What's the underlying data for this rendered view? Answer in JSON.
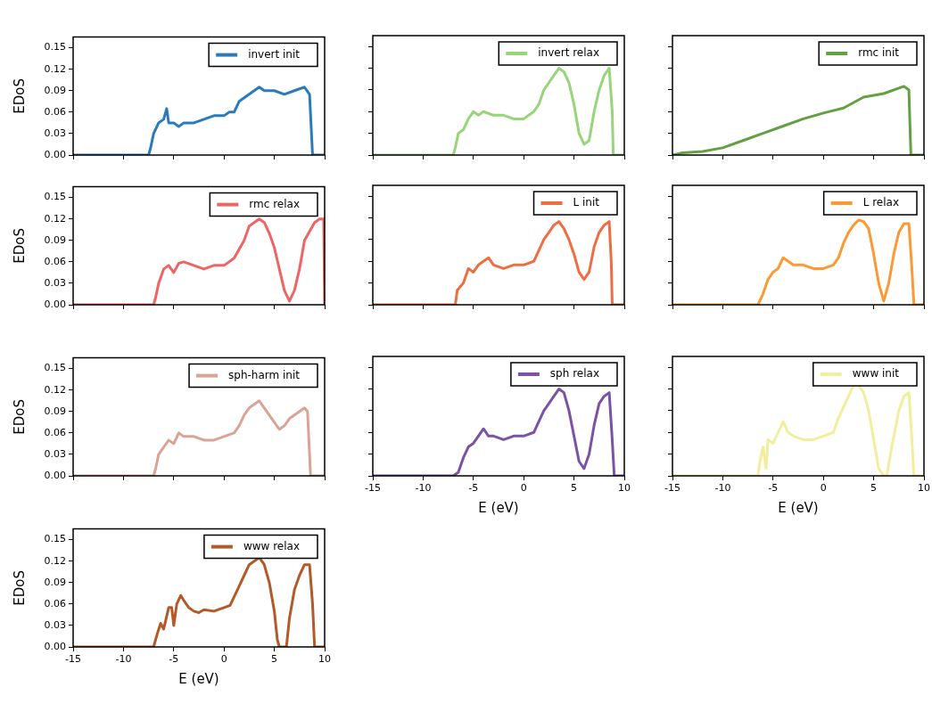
{
  "chart_data": [
    {
      "type": "line",
      "ylabel": "EDoS",
      "legend": "top right",
      "tick_labels": "y",
      "xlim": [
        -15,
        10
      ],
      "xticks": [
        {
          "value": -15,
          "label": null
        },
        {
          "value": -10,
          "label": null
        },
        {
          "value": -5,
          "label": null
        },
        {
          "value": 0,
          "label": null
        },
        {
          "value": 5,
          "label": null
        },
        {
          "value": 10,
          "label": null
        }
      ],
      "ylim": [
        0,
        0.165
      ],
      "yticks": [
        {
          "value": 0,
          "label": "0.00"
        },
        {
          "value": 0.03,
          "label": "0.03"
        },
        {
          "value": 0.06,
          "label": "0.06"
        },
        {
          "value": 0.09,
          "label": "0.09"
        },
        {
          "value": 0.12,
          "label": "0.12"
        },
        {
          "value": 0.15,
          "label": "0.15"
        }
      ],
      "x": [
        -15,
        -7.5,
        -7.3,
        -7,
        -6.5,
        -6,
        -5.7,
        -5.5,
        -5,
        -4.5,
        -4,
        -3,
        -2,
        -1,
        0,
        0.5,
        1,
        1.5,
        2,
        3,
        3.5,
        4,
        5,
        6,
        7,
        8,
        8.5,
        8.8,
        10
      ],
      "series": [
        {
          "name": "invert init",
          "color": "#2b7bba",
          "values": [
            0,
            0,
            0.01,
            0.03,
            0.045,
            0.05,
            0.065,
            0.045,
            0.045,
            0.04,
            0.045,
            0.045,
            0.05,
            0.055,
            0.055,
            0.06,
            0.06,
            0.075,
            0.08,
            0.09,
            0.095,
            0.09,
            0.09,
            0.085,
            0.09,
            0.095,
            0.085,
            0,
            0
          ]
        }
      ]
    },
    {
      "type": "line",
      "legend": "top right",
      "tick_labels": false,
      "xlim": [
        -15,
        10
      ],
      "xticks": [
        {
          "value": -15,
          "label": null
        },
        {
          "value": -10,
          "label": null
        },
        {
          "value": -5,
          "label": null
        },
        {
          "value": 0,
          "label": null
        },
        {
          "value": 5,
          "label": null
        },
        {
          "value": 10,
          "label": null
        }
      ],
      "ylim": [
        0,
        0.165
      ],
      "yticks": [
        {
          "value": 0,
          "label": null
        },
        {
          "value": 0.03,
          "label": null
        },
        {
          "value": 0.06,
          "label": null
        },
        {
          "value": 0.09,
          "label": null
        },
        {
          "value": 0.12,
          "label": null
        },
        {
          "value": 0.15,
          "label": null
        }
      ],
      "x": [
        -15,
        -7,
        -6.8,
        -6.5,
        -6,
        -5.5,
        -5,
        -4.5,
        -4,
        -3,
        -2,
        -1,
        0,
        0.5,
        1,
        1.5,
        2,
        2.5,
        3,
        3.5,
        4,
        4.5,
        5,
        5.5,
        6,
        6.5,
        7,
        7.5,
        8,
        8.5,
        8.8,
        8.9,
        10
      ],
      "series": [
        {
          "name": "invert relax",
          "color": "#98d479",
          "values": [
            0,
            0,
            0.01,
            0.03,
            0.035,
            0.05,
            0.06,
            0.055,
            0.06,
            0.055,
            0.055,
            0.05,
            0.05,
            0.055,
            0.06,
            0.07,
            0.09,
            0.1,
            0.11,
            0.12,
            0.115,
            0.1,
            0.07,
            0.03,
            0.015,
            0.02,
            0.06,
            0.09,
            0.11,
            0.12,
            0.06,
            0,
            0
          ]
        }
      ]
    },
    {
      "type": "line",
      "legend": "top right",
      "tick_labels": false,
      "xlim": [
        -15,
        10
      ],
      "xticks": [
        {
          "value": -15,
          "label": null
        },
        {
          "value": -10,
          "label": null
        },
        {
          "value": -5,
          "label": null
        },
        {
          "value": 0,
          "label": null
        },
        {
          "value": 5,
          "label": null
        },
        {
          "value": 10,
          "label": null
        }
      ],
      "ylim": [
        0,
        0.165
      ],
      "yticks": [
        {
          "value": 0,
          "label": null
        },
        {
          "value": 0.03,
          "label": null
        },
        {
          "value": 0.06,
          "label": null
        },
        {
          "value": 0.09,
          "label": null
        },
        {
          "value": 0.12,
          "label": null
        },
        {
          "value": 0.15,
          "label": null
        }
      ],
      "x": [
        -15,
        -14,
        -12,
        -10,
        -8,
        -6,
        -4,
        -2,
        0,
        2,
        4,
        6,
        8,
        8.5,
        8.7,
        10
      ],
      "series": [
        {
          "name": "rmc init",
          "color": "#62a043",
          "values": [
            0,
            0.003,
            0.005,
            0.01,
            0.02,
            0.03,
            0.04,
            0.05,
            0.058,
            0.065,
            0.08,
            0.085,
            0.095,
            0.09,
            0,
            0
          ]
        }
      ]
    },
    {
      "type": "line",
      "ylabel": "EDoS",
      "legend": "top right",
      "tick_labels": "y",
      "xlim": [
        -15,
        10
      ],
      "xticks": [
        {
          "value": -15,
          "label": null
        },
        {
          "value": -10,
          "label": null
        },
        {
          "value": -5,
          "label": null
        },
        {
          "value": 0,
          "label": null
        },
        {
          "value": 5,
          "label": null
        },
        {
          "value": 10,
          "label": null
        }
      ],
      "ylim": [
        0,
        0.165
      ],
      "yticks": [
        {
          "value": 0,
          "label": "0.00"
        },
        {
          "value": 0.03,
          "label": "0.03"
        },
        {
          "value": 0.06,
          "label": "0.06"
        },
        {
          "value": 0.09,
          "label": "0.09"
        },
        {
          "value": 0.12,
          "label": "0.12"
        },
        {
          "value": 0.15,
          "label": "0.15"
        }
      ],
      "x": [
        -15,
        -7,
        -6.8,
        -6.5,
        -6,
        -5.5,
        -5,
        -4.5,
        -4,
        -3,
        -2,
        -1,
        0,
        0.5,
        1,
        2,
        2.5,
        3.5,
        4,
        4.5,
        5,
        5.5,
        6,
        6.5,
        7,
        7.5,
        8,
        9,
        9.5,
        9.9,
        10
      ],
      "series": [
        {
          "name": "rmc relax",
          "color": "#ee6565",
          "values": [
            0,
            0,
            0.01,
            0.03,
            0.05,
            0.055,
            0.045,
            0.058,
            0.06,
            0.055,
            0.05,
            0.055,
            0.055,
            0.06,
            0.065,
            0.09,
            0.11,
            0.12,
            0.115,
            0.1,
            0.08,
            0.05,
            0.02,
            0.005,
            0.02,
            0.05,
            0.09,
            0.115,
            0.12,
            0.12,
            0
          ]
        }
      ]
    },
    {
      "type": "line",
      "legend": "top right",
      "tick_labels": false,
      "xlim": [
        -15,
        10
      ],
      "xticks": [
        {
          "value": -15,
          "label": null
        },
        {
          "value": -10,
          "label": null
        },
        {
          "value": -5,
          "label": null
        },
        {
          "value": 0,
          "label": null
        },
        {
          "value": 5,
          "label": null
        },
        {
          "value": 10,
          "label": null
        }
      ],
      "ylim": [
        0,
        0.165
      ],
      "yticks": [
        {
          "value": 0,
          "label": null
        },
        {
          "value": 0.03,
          "label": null
        },
        {
          "value": 0.06,
          "label": null
        },
        {
          "value": 0.09,
          "label": null
        },
        {
          "value": 0.12,
          "label": null
        },
        {
          "value": 0.15,
          "label": null
        }
      ],
      "x": [
        -15,
        -6.8,
        -6.6,
        -6,
        -5.5,
        -5,
        -4.5,
        -4,
        -3.5,
        -3,
        -2,
        -1,
        0,
        1,
        1.5,
        2,
        2.5,
        3,
        3.5,
        4,
        4.5,
        5,
        5.5,
        6,
        6.5,
        7,
        7.5,
        8,
        8.5,
        8.7,
        8.8,
        10
      ],
      "series": [
        {
          "name": "L init",
          "color": "#ee6e44",
          "values": [
            0,
            0,
            0.02,
            0.03,
            0.05,
            0.045,
            0.055,
            0.06,
            0.065,
            0.055,
            0.05,
            0.055,
            0.055,
            0.06,
            0.075,
            0.09,
            0.1,
            0.11,
            0.115,
            0.105,
            0.09,
            0.07,
            0.045,
            0.035,
            0.045,
            0.08,
            0.1,
            0.11,
            0.115,
            0.06,
            0,
            0
          ]
        }
      ]
    },
    {
      "type": "line",
      "legend": "top right",
      "tick_labels": false,
      "xlim": [
        -15,
        10
      ],
      "xticks": [
        {
          "value": -15,
          "label": null
        },
        {
          "value": -10,
          "label": null
        },
        {
          "value": -5,
          "label": null
        },
        {
          "value": 0,
          "label": null
        },
        {
          "value": 5,
          "label": null
        },
        {
          "value": 10,
          "label": null
        }
      ],
      "ylim": [
        0,
        0.165
      ],
      "yticks": [
        {
          "value": 0,
          "label": null
        },
        {
          "value": 0.03,
          "label": null
        },
        {
          "value": 0.06,
          "label": null
        },
        {
          "value": 0.09,
          "label": null
        },
        {
          "value": 0.12,
          "label": null
        },
        {
          "value": 0.15,
          "label": null
        }
      ],
      "x": [
        -15,
        -6.5,
        -6,
        -5.5,
        -5,
        -4.5,
        -4,
        -3.5,
        -3,
        -2,
        -1,
        0,
        1,
        1.5,
        2,
        2.5,
        3,
        3.5,
        4,
        4.5,
        5,
        5.5,
        6,
        6.5,
        7,
        7.5,
        8,
        8.5,
        8.8,
        9,
        10
      ],
      "series": [
        {
          "name": "L relax",
          "color": "#fb9a34",
          "values": [
            0,
            0,
            0.015,
            0.035,
            0.045,
            0.05,
            0.065,
            0.06,
            0.055,
            0.055,
            0.05,
            0.05,
            0.055,
            0.065,
            0.085,
            0.1,
            0.11,
            0.117,
            0.115,
            0.105,
            0.07,
            0.03,
            0.005,
            0.03,
            0.07,
            0.1,
            0.112,
            0.112,
            0.05,
            0,
            0
          ]
        }
      ]
    },
    {
      "type": "line",
      "ylabel": "EDoS",
      "legend": "top right",
      "tick_labels": "y",
      "xlim": [
        -15,
        10
      ],
      "xticks": [
        {
          "value": -15,
          "label": null
        },
        {
          "value": -10,
          "label": null
        },
        {
          "value": -5,
          "label": null
        },
        {
          "value": 0,
          "label": null
        },
        {
          "value": 5,
          "label": null
        },
        {
          "value": 10,
          "label": null
        }
      ],
      "ylim": [
        0,
        0.165
      ],
      "yticks": [
        {
          "value": 0,
          "label": "0.00"
        },
        {
          "value": 0.03,
          "label": "0.03"
        },
        {
          "value": 0.06,
          "label": "0.06"
        },
        {
          "value": 0.09,
          "label": "0.09"
        },
        {
          "value": 0.12,
          "label": "0.12"
        },
        {
          "value": 0.15,
          "label": "0.15"
        }
      ],
      "x": [
        -15,
        -7,
        -6.8,
        -6.5,
        -6,
        -5.5,
        -5,
        -4.5,
        -4,
        -3,
        -2,
        -1,
        0,
        1,
        1.5,
        2,
        2.5,
        3,
        3.5,
        4,
        4.5,
        5,
        5.5,
        6,
        6.5,
        7,
        8,
        8.3,
        8.6,
        10
      ],
      "series": [
        {
          "name": "sph-harm init",
          "color": "#d9a496",
          "values": [
            0,
            0,
            0.01,
            0.03,
            0.04,
            0.05,
            0.045,
            0.06,
            0.055,
            0.055,
            0.05,
            0.05,
            0.055,
            0.06,
            0.07,
            0.085,
            0.095,
            0.1,
            0.105,
            0.095,
            0.085,
            0.075,
            0.065,
            0.07,
            0.08,
            0.085,
            0.095,
            0.09,
            0,
            0
          ]
        }
      ]
    },
    {
      "type": "line",
      "xlabel": "E (eV)",
      "legend": "top right",
      "tick_labels": "x",
      "xlim": [
        -15,
        10
      ],
      "xticks": [
        -15,
        -10,
        -5,
        0,
        5,
        10
      ],
      "ylim": [
        0,
        0.165
      ],
      "yticks": [
        {
          "value": 0,
          "label": null
        },
        {
          "value": 0.03,
          "label": null
        },
        {
          "value": 0.06,
          "label": null
        },
        {
          "value": 0.09,
          "label": null
        },
        {
          "value": 0.12,
          "label": null
        },
        {
          "value": 0.15,
          "label": null
        }
      ],
      "x": [
        -15,
        -7,
        -6.5,
        -6,
        -5.5,
        -5,
        -4.5,
        -4,
        -3.5,
        -3,
        -2,
        -1,
        0,
        1,
        1.5,
        2,
        2.5,
        3,
        3.5,
        4,
        4.5,
        5,
        5.5,
        6,
        6.5,
        7,
        7.5,
        8,
        8.5,
        8.8,
        9,
        10
      ],
      "series": [
        {
          "name": "sph relax",
          "color": "#7b52a6",
          "values": [
            0,
            0,
            0.005,
            0.025,
            0.04,
            0.045,
            0.055,
            0.065,
            0.055,
            0.055,
            0.05,
            0.055,
            0.055,
            0.06,
            0.075,
            0.09,
            0.1,
            0.11,
            0.12,
            0.115,
            0.09,
            0.055,
            0.02,
            0.01,
            0.03,
            0.07,
            0.1,
            0.11,
            0.115,
            0.05,
            0,
            0
          ]
        }
      ]
    },
    {
      "type": "line",
      "xlabel": "E (eV)",
      "legend": "top right",
      "tick_labels": "x",
      "xlim": [
        -15,
        10
      ],
      "xticks": [
        -15,
        -10,
        -5,
        0,
        5,
        10
      ],
      "ylim": [
        0,
        0.165
      ],
      "yticks": [
        {
          "value": 0,
          "label": null
        },
        {
          "value": 0.03,
          "label": null
        },
        {
          "value": 0.06,
          "label": null
        },
        {
          "value": 0.09,
          "label": null
        },
        {
          "value": 0.12,
          "label": null
        },
        {
          "value": 0.15,
          "label": null
        }
      ],
      "x": [
        -15,
        -6.5,
        -6.3,
        -6,
        -5.7,
        -5.5,
        -5,
        -4.5,
        -4,
        -3.5,
        -3,
        -2,
        -1,
        0,
        1,
        1.5,
        2,
        2.5,
        3,
        3.5,
        4,
        4.5,
        5,
        5.5,
        6,
        6.3,
        6.8,
        7.5,
        8,
        8.5,
        8.8,
        9,
        10
      ],
      "series": [
        {
          "name": "www init",
          "color": "#f2ee9e",
          "values": [
            0,
            0,
            0.02,
            0.04,
            0.01,
            0.05,
            0.045,
            0.06,
            0.075,
            0.06,
            0.055,
            0.05,
            0.05,
            0.055,
            0.06,
            0.08,
            0.095,
            0.11,
            0.125,
            0.125,
            0.115,
            0.09,
            0.05,
            0.01,
            0,
            0,
            0.04,
            0.09,
            0.11,
            0.115,
            0.05,
            0,
            0
          ]
        }
      ]
    },
    {
      "type": "line",
      "xlabel": "E (eV)",
      "ylabel": "EDoS",
      "legend": "top right",
      "xlim": [
        -15,
        10
      ],
      "xticks": [
        -15,
        -10,
        -5,
        0,
        5,
        10
      ],
      "ylim": [
        0,
        0.165
      ],
      "yticks": [
        {
          "value": 0,
          "label": "0.00"
        },
        {
          "value": 0.03,
          "label": "0.03"
        },
        {
          "value": 0.06,
          "label": "0.06"
        },
        {
          "value": 0.09,
          "label": "0.09"
        },
        {
          "value": 0.12,
          "label": "0.12"
        },
        {
          "value": 0.15,
          "label": "0.15"
        }
      ],
      "x": [
        -15,
        -7,
        -6.6,
        -6.3,
        -6,
        -5.5,
        -5.2,
        -5,
        -4.7,
        -4.3,
        -4,
        -3.5,
        -3,
        -2.5,
        -2,
        -1,
        0,
        0.6,
        1,
        1.5,
        2,
        2.5,
        3,
        3.5,
        4,
        4.5,
        5,
        5.3,
        5.5,
        6.2,
        6.5,
        7,
        7.5,
        8,
        8.5,
        8.8,
        9,
        10
      ],
      "series": [
        {
          "name": "www relax",
          "color": "#b35a2b",
          "values": [
            0,
            0,
            0.02,
            0.033,
            0.025,
            0.055,
            0.055,
            0.03,
            0.06,
            0.072,
            0.065,
            0.055,
            0.05,
            0.048,
            0.052,
            0.05,
            0.055,
            0.058,
            0.07,
            0.085,
            0.1,
            0.115,
            0.12,
            0.125,
            0.115,
            0.09,
            0.05,
            0.01,
            0,
            0,
            0.04,
            0.08,
            0.1,
            0.115,
            0.115,
            0.06,
            0,
            0
          ]
        }
      ]
    }
  ]
}
